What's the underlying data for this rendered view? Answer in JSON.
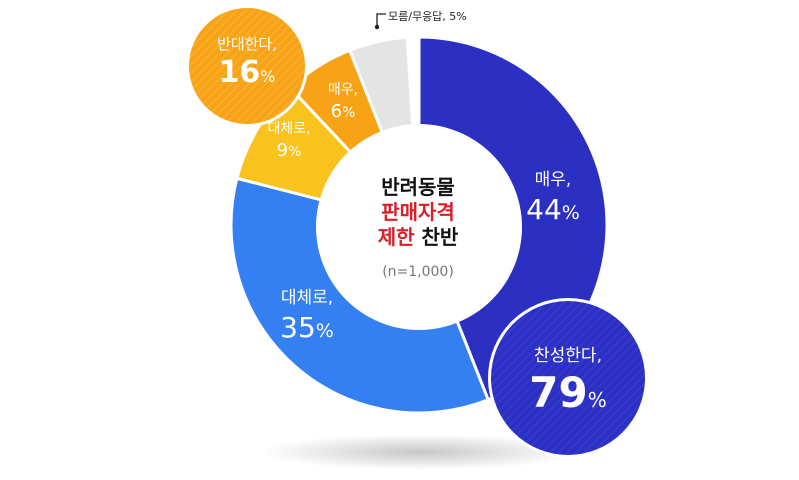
{
  "chart_data": {
    "type": "pie",
    "subtype": "donut",
    "title": "반려동물 판매자격 제한 찬반",
    "title_lines": [
      "반려동물",
      "판매자격",
      "제한",
      "찬반"
    ],
    "sample_size": "(n=1,000)",
    "segments": [
      {
        "label": "매우,",
        "group": "찬성",
        "value": 44,
        "color": "#2b2fc2"
      },
      {
        "label": "대체로,",
        "group": "찬성",
        "value": 35,
        "color": "#3480f2"
      },
      {
        "label": "대체로,",
        "group": "반대",
        "value": 9,
        "color": "#f9c21c"
      },
      {
        "label": "매우,",
        "group": "반대",
        "value": 6,
        "color": "#f7a315"
      },
      {
        "label": "모름/무응답,",
        "group": "모름/무응답",
        "value": 5,
        "color": "#e4e4e4"
      }
    ],
    "totals": [
      {
        "label": "찬성한다,",
        "value": 79,
        "color": "#2b2fc2"
      },
      {
        "label": "반대한다,",
        "value": 16,
        "color": "#f7a315"
      }
    ],
    "unit": "%"
  },
  "labels": {
    "seg0_t": "매우,",
    "seg0_v": "44",
    "seg1_t": "대체로,",
    "seg1_v": "35",
    "seg2_t": "대체로,",
    "seg2_v": "9",
    "seg3_t": "매우,",
    "seg3_v": "6",
    "na_label": "모름/무응답, 5%",
    "pct": "%",
    "agree_t": "찬성한다,",
    "agree_v": "79",
    "disagree_t": "반대한다,",
    "disagree_v": "16",
    "center_l1": "반려동물",
    "center_l2": "판매자격",
    "center_l3a": "제한",
    "center_l3b": " 찬반",
    "center_n": "(n=1,000)"
  }
}
